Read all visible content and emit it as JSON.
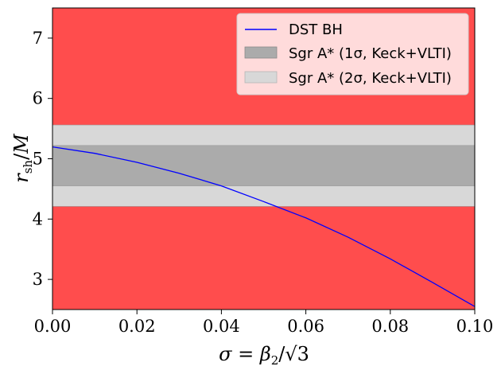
{
  "chart_data": {
    "type": "line",
    "title": "",
    "xlabel": "σ = β₂/√3",
    "ylabel": "r_sh/M",
    "xlim": [
      0.0,
      0.1
    ],
    "ylim": [
      2.5,
      7.5
    ],
    "xticks": [
      0.0,
      0.02,
      0.04,
      0.06,
      0.08,
      0.1
    ],
    "xtick_labels": [
      "0.00",
      "0.02",
      "0.04",
      "0.06",
      "0.08",
      "0.10"
    ],
    "yticks": [
      3,
      4,
      5,
      6,
      7
    ],
    "ytick_labels": [
      "3",
      "4",
      "5",
      "6",
      "7"
    ],
    "background_excluded_color": "#ff4d4d",
    "bands": [
      {
        "name": "Sgr A* (2σ, Keck+VLTI)",
        "y_min": 4.21,
        "y_max": 5.56,
        "color": "#d8d8d8"
      },
      {
        "name": "Sgr A* (1σ, Keck+VLTI)",
        "y_min": 4.55,
        "y_max": 5.22,
        "color": "#ababab"
      }
    ],
    "series": [
      {
        "name": "DST BH",
        "color": "#0000ff",
        "x": [
          0.0,
          0.01,
          0.02,
          0.03,
          0.04,
          0.05,
          0.06,
          0.07,
          0.08,
          0.09,
          0.1
        ],
        "y": [
          5.196,
          5.09,
          4.94,
          4.76,
          4.55,
          4.29,
          4.02,
          3.7,
          3.34,
          2.95,
          2.55
        ]
      }
    ],
    "legend": {
      "position": "top-right",
      "entries": [
        "DST BH",
        "Sgr A* (1σ, Keck+VLTI)",
        "Sgr A* (2σ, Keck+VLTI)"
      ]
    }
  }
}
